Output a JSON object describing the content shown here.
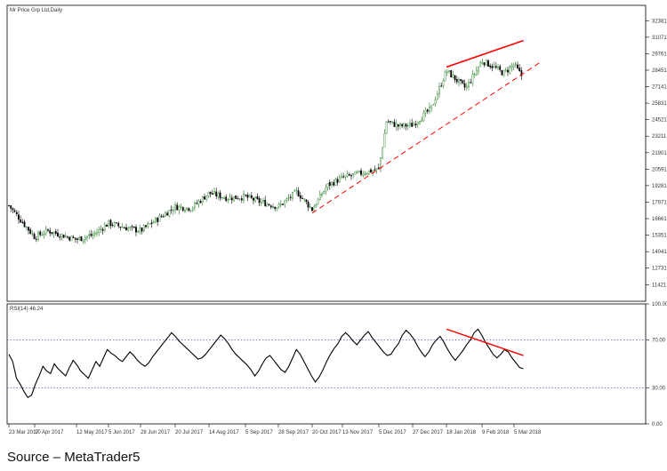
{
  "price_title": "Mr Price Grp Ltd,Daily",
  "rsi_title": "RSI(14) 46.24",
  "source_text": "Source – MetaTrader5",
  "colors": {
    "up": "#1f7a1f",
    "down": "#000000",
    "trend": "#ff0000",
    "rsi_line": "#000000",
    "level": "#5a5ad6"
  },
  "chart_data": [
    {
      "type": "candlestick",
      "title": "Mr Price Grp Ltd,Daily",
      "ylim": [
        10100,
        33600
      ],
      "y_ticks": [
        11421,
        12731,
        14041,
        15351,
        16661,
        17971,
        19281,
        20591,
        21901,
        23211,
        24521,
        25831,
        27141,
        28451,
        29761,
        31071,
        32381
      ],
      "x_ticks": [
        "23 Mar 2017",
        "10 Apr 2017",
        "12 May 2017",
        "5 Jun 2017",
        "28 Jun 2017",
        "20 Jul 2017",
        "14 Aug 2017",
        "5 Sep 2017",
        "28 Sep 2017",
        "20 Oct 2017",
        "13 Nov 2017",
        "5 Dec 2017",
        "27 Dec 2017",
        "18 Jan 2018",
        "9 Feb 2018",
        "5 Mar 2018"
      ],
      "close_path": [
        [
          "23 Mar 2017",
          17700
        ],
        [
          "10 Apr 2017",
          15200
        ],
        [
          "20 Apr 2017",
          15700
        ],
        [
          "12 May 2017",
          15000
        ],
        [
          "25 May 2017",
          15400
        ],
        [
          "5 Jun 2017",
          16300
        ],
        [
          "15 Jun 2017",
          16000
        ],
        [
          "28 Jun 2017",
          15700
        ],
        [
          "20 Jul 2017",
          17600
        ],
        [
          "1 Aug 2017",
          17500
        ],
        [
          "14 Aug 2017",
          18700
        ],
        [
          "25 Aug 2017",
          18300
        ],
        [
          "5 Sep 2017",
          18400
        ],
        [
          "15 Sep 2017",
          18000
        ],
        [
          "28 Sep 2017",
          17600
        ],
        [
          "10 Oct 2017",
          18800
        ],
        [
          "20 Oct 2017",
          17400
        ],
        [
          "1 Nov 2017",
          19300
        ],
        [
          "13 Nov 2017",
          19900
        ],
        [
          "22 Nov 2017",
          20200
        ],
        [
          "5 Dec 2017",
          20600
        ],
        [
          "10 Dec 2017",
          24400
        ],
        [
          "18 Dec 2017",
          24000
        ],
        [
          "27 Dec 2017",
          24100
        ],
        [
          "8 Jan 2018",
          25400
        ],
        [
          "18 Jan 2018",
          28400
        ],
        [
          "30 Jan 2018",
          27000
        ],
        [
          "9 Feb 2018",
          29200
        ],
        [
          "18 Feb 2018",
          28700
        ],
        [
          "25 Feb 2018",
          28200
        ],
        [
          "5 Mar 2018",
          28900
        ],
        [
          "12 Mar 2018",
          27800
        ]
      ],
      "trendlines": [
        {
          "style": "solid",
          "from": [
            "18 Jan 2018",
            28700
          ],
          "to": [
            "12 Mar 2018",
            30800
          ]
        },
        {
          "style": "dashed",
          "from": [
            "20 Oct 2017",
            17100
          ],
          "to": [
            "25 Mar 2018",
            29100
          ]
        }
      ]
    },
    {
      "type": "line",
      "title": "RSI(14) 46.24",
      "ylim": [
        0,
        100
      ],
      "y_ticks": [
        0,
        30,
        70,
        100
      ],
      "y_tick_labels": [
        "0.00",
        "30.00",
        "70.00",
        "100.00"
      ],
      "levels": [
        30,
        70
      ],
      "last_value": 46.24,
      "series": [
        {
          "values": [
            58,
            52,
            38,
            33,
            27,
            22,
            24,
            33,
            40,
            48,
            44,
            42,
            50,
            46,
            43,
            40,
            47,
            53,
            49,
            44,
            41,
            38,
            45,
            52,
            48,
            55,
            62,
            59,
            57,
            54,
            52,
            56,
            60,
            57,
            53,
            50,
            48,
            51,
            56,
            60,
            64,
            68,
            72,
            76,
            73,
            69,
            66,
            63,
            60,
            57,
            54,
            55,
            58,
            62,
            66,
            70,
            74,
            71,
            67,
            62,
            58,
            55,
            52,
            49,
            45,
            40,
            44,
            50,
            55,
            57,
            53,
            49,
            45,
            43,
            48,
            55,
            62,
            58,
            52,
            46,
            40,
            35,
            39,
            45,
            52,
            58,
            63,
            67,
            73,
            76,
            73,
            69,
            66,
            70,
            74,
            77,
            72,
            68,
            64,
            60,
            57,
            58,
            63,
            67,
            74,
            78,
            75,
            71,
            65,
            60,
            56,
            60,
            66,
            70,
            73,
            68,
            62,
            57,
            53,
            57,
            61,
            66,
            70,
            76,
            79,
            74,
            68,
            63,
            58,
            55,
            58,
            62,
            60,
            55,
            51,
            47,
            46
          ]
        }
      ],
      "trendline": {
        "from_x_label": "18 Jan 2018",
        "from": 79,
        "to_x_label": "12 Mar 2018",
        "to": 57
      }
    }
  ]
}
